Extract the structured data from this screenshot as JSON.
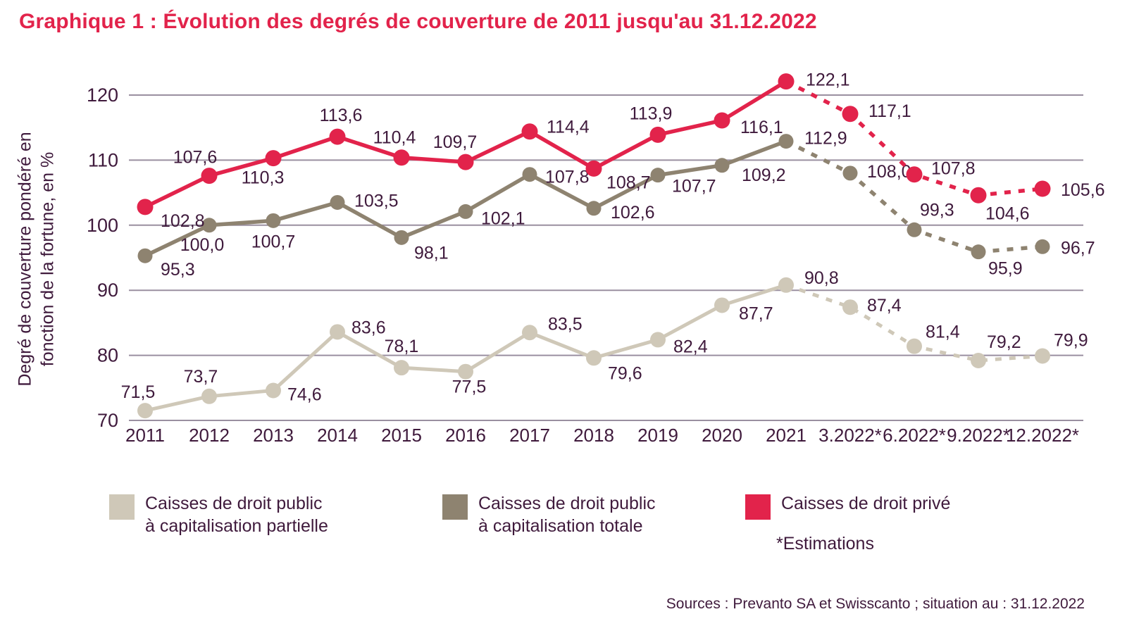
{
  "title": "Graphique 1 : Évolution des degrés de couverture de 2011 jusqu'au 31.12.2022",
  "colors": {
    "title": "#e2234b",
    "text": "#3f1a3c",
    "gridline": "#9a8fa0",
    "prive_red": "#e2234b",
    "totale_taupe": "#8e8370",
    "partielle_beige": "#cfc8b8"
  },
  "chart_data": {
    "type": "line",
    "title": "Graphique 1 : Évolution des degrés de couverture de 2011 jusqu'au 31.12.2022",
    "ylabel_line1": "Degré de couverture pondéré en",
    "ylabel_line2": "fonction de la fortune, en %",
    "xlabel": "",
    "categories": [
      "2011",
      "2012",
      "2013",
      "2014",
      "2015",
      "2016",
      "2017",
      "2018",
      "2019",
      "2020",
      "2021",
      "3.2022*",
      "6.2022*",
      "9.2022*",
      "12.2022*"
    ],
    "y_ticks": [
      70,
      80,
      90,
      100,
      110,
      120
    ],
    "ylim": [
      70,
      124
    ],
    "grid": true,
    "legend_position": "bottom",
    "estimation_start_index": 10,
    "decimal_separator": ",",
    "series": [
      {
        "name": "Caisses de droit public à capitalisation partielle",
        "color": "#cfc8b8",
        "values": [
          71.5,
          73.7,
          74.6,
          83.6,
          78.1,
          77.5,
          83.5,
          79.6,
          82.4,
          87.7,
          90.8,
          87.4,
          81.4,
          79.2,
          79.9
        ]
      },
      {
        "name": "Caisses de droit public à capitalisation totale",
        "color": "#8e8370",
        "values": [
          95.3,
          100.0,
          100.7,
          103.5,
          98.1,
          102.1,
          107.8,
          102.6,
          107.7,
          109.2,
          112.9,
          108.0,
          99.3,
          95.9,
          96.7
        ]
      },
      {
        "name": "Caisses de droit privé",
        "color": "#e2234b",
        "values": [
          102.8,
          107.6,
          110.3,
          113.6,
          110.4,
          109.7,
          114.4,
          108.7,
          113.9,
          116.1,
          122.1,
          117.1,
          107.8,
          104.6,
          105.6
        ]
      }
    ]
  },
  "legend": {
    "items": [
      {
        "label_line1": "Caisses de droit public",
        "label_line2": "à capitalisation partielle",
        "color": "#cfc8b8"
      },
      {
        "label_line1": "Caisses de droit public",
        "label_line2": "à capitalisation totale",
        "color": "#8e8370"
      },
      {
        "label_line1": "Caisses de droit privé",
        "label_line2": "",
        "color": "#e2234b"
      }
    ],
    "estimations_note": "*Estimations"
  },
  "footer": "Sources : Prevanto SA et Swisscanto ; situation au : 31.12.2022"
}
